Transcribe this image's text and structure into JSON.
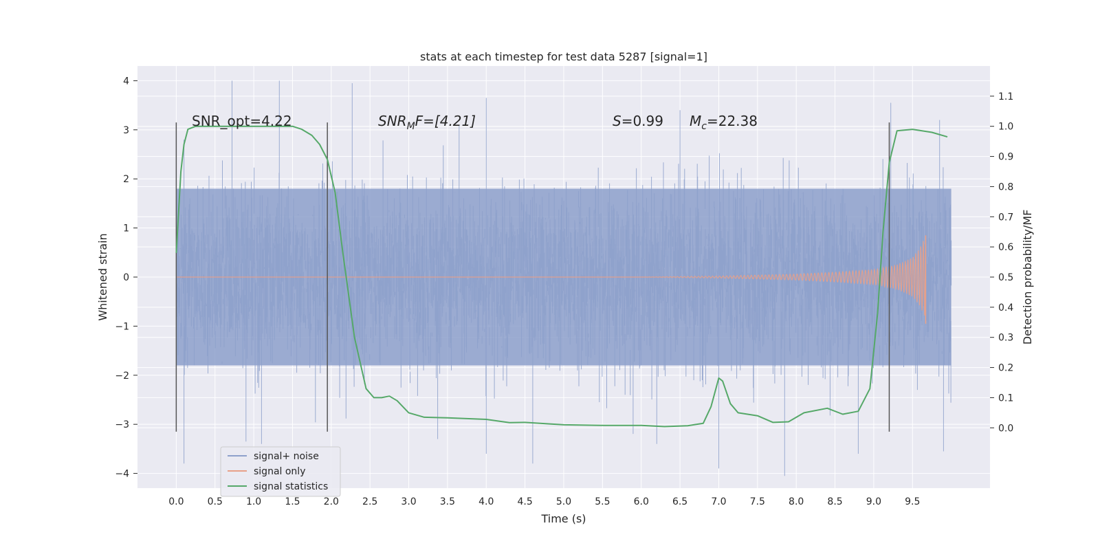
{
  "chart_data": {
    "type": "line",
    "title": "stats at each timestep for test data 5287 [signal=1]",
    "xlabel": "Time (s)",
    "ylabel": "Whitened strain",
    "y2label": "Detection probability/MF",
    "xlim": [
      -0.5,
      10.5
    ],
    "ylim": [
      -4.3,
      4.3
    ],
    "y2lim": [
      -0.2,
      1.2
    ],
    "grid": true,
    "legend_placement": "lower-left",
    "x_ticks": [
      "0.0",
      "0.5",
      "1.0",
      "1.5",
      "2.0",
      "2.5",
      "3.0",
      "3.5",
      "4.0",
      "4.5",
      "5.0",
      "5.5",
      "6.0",
      "6.5",
      "7.0",
      "7.5",
      "8.0",
      "8.5",
      "9.0",
      "9.5"
    ],
    "x_tick_values": [
      0,
      0.5,
      1,
      1.5,
      2,
      2.5,
      3,
      3.5,
      4,
      4.5,
      5,
      5.5,
      6,
      6.5,
      7,
      7.5,
      8,
      8.5,
      9,
      9.5
    ],
    "y_ticks": [
      "4",
      "3",
      "2",
      "1",
      "0",
      "−1",
      "−2",
      "−3",
      "−4"
    ],
    "y_tick_values": [
      4,
      3,
      2,
      1,
      0,
      -1,
      -2,
      -3,
      -4
    ],
    "y2_ticks": [
      "1.1",
      "1.0",
      "0.9",
      "0.8",
      "0.7",
      "0.6",
      "0.5",
      "0.4",
      "0.3",
      "0.2",
      "0.1",
      "0.0"
    ],
    "y2_tick_values": [
      1.1,
      1.0,
      0.9,
      0.8,
      0.7,
      0.6,
      0.5,
      0.4,
      0.3,
      0.2,
      0.1,
      0.0
    ],
    "annotations": {
      "snr_opt": "SNR_opt=4.22",
      "snr_mf_main": "SNR",
      "snr_mf_sub": "M",
      "snr_mf_rest": "F=[4.21]",
      "s_main": "S",
      "s_rest": "=0.99",
      "mc_main": "M",
      "mc_sub": "c",
      "mc_rest": "=22.38"
    },
    "vlines_x": [
      0.0,
      1.95,
      9.2
    ],
    "vlines_y": [
      -3.15,
      3.15
    ],
    "series": [
      {
        "name": "signal+ noise",
        "color": "#8da0cb",
        "axis": "left",
        "t_range": [
          0.0,
          10.0
        ],
        "band_typical": [
          -1.8,
          1.8
        ],
        "peaks": [
          [
            0.1,
            2.8
          ],
          [
            0.72,
            4.0
          ],
          [
            1.33,
            4.0
          ],
          [
            2.27,
            3.95
          ],
          [
            3.65,
            3.1
          ],
          [
            4.0,
            3.65
          ],
          [
            6.5,
            3.4
          ],
          [
            9.22,
            3.55
          ],
          [
            9.85,
            3.2
          ],
          [
            0.1,
            -3.8
          ],
          [
            0.9,
            -3.35
          ],
          [
            1.1,
            -3.4
          ],
          [
            4.0,
            -3.6
          ],
          [
            4.6,
            -3.8
          ],
          [
            6.2,
            -3.4
          ],
          [
            7.0,
            -3.9
          ],
          [
            7.85,
            -4.05
          ],
          [
            8.8,
            -3.6
          ],
          [
            9.9,
            -3.55
          ]
        ]
      },
      {
        "name": "signal only",
        "color": "#e8a088",
        "axis": "left",
        "envelope": [
          [
            6.0,
            0.0
          ],
          [
            7.0,
            0.02
          ],
          [
            8.0,
            0.06
          ],
          [
            8.5,
            0.1
          ],
          [
            9.0,
            0.15
          ],
          [
            9.3,
            0.25
          ],
          [
            9.5,
            0.4
          ],
          [
            9.6,
            0.6
          ],
          [
            9.67,
            0.85
          ]
        ],
        "end_t": 9.67
      },
      {
        "name": "signal statistics",
        "color": "#55a868",
        "axis": "right",
        "x": [
          0.0,
          0.06,
          0.1,
          0.15,
          0.25,
          0.5,
          1.0,
          1.5,
          1.62,
          1.75,
          1.85,
          1.95,
          2.05,
          2.15,
          2.3,
          2.45,
          2.55,
          2.65,
          2.75,
          2.85,
          3.0,
          3.2,
          3.5,
          4.0,
          4.3,
          4.5,
          5.0,
          5.5,
          6.0,
          6.3,
          6.6,
          6.8,
          6.9,
          7.0,
          7.05,
          7.15,
          7.25,
          7.5,
          7.7,
          7.9,
          8.1,
          8.4,
          8.6,
          8.8,
          8.95,
          9.05,
          9.12,
          9.2,
          9.3,
          9.5,
          9.75,
          9.95
        ],
        "y": [
          0.58,
          0.85,
          0.94,
          0.99,
          1.0,
          1.0,
          1.0,
          1.0,
          0.99,
          0.97,
          0.94,
          0.89,
          0.78,
          0.58,
          0.3,
          0.13,
          0.1,
          0.1,
          0.105,
          0.09,
          0.05,
          0.035,
          0.033,
          0.028,
          0.017,
          0.018,
          0.01,
          0.008,
          0.008,
          0.004,
          0.007,
          0.015,
          0.07,
          0.165,
          0.155,
          0.08,
          0.05,
          0.04,
          0.018,
          0.02,
          0.05,
          0.065,
          0.045,
          0.055,
          0.13,
          0.38,
          0.65,
          0.88,
          0.985,
          0.99,
          0.98,
          0.965
        ]
      }
    ]
  }
}
